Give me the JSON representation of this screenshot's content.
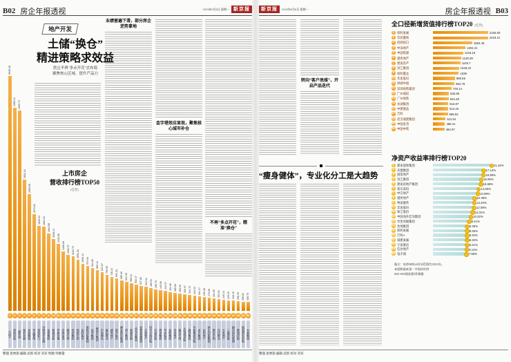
{
  "paper": {
    "left_header": {
      "page": "B02",
      "section": "房企年报透视",
      "date": "2023年5月8日 星期一",
      "masthead": "新京报"
    },
    "right_header": {
      "page": "B03",
      "section": "房企年报透视",
      "date": "2023年5月8日 星期一",
      "masthead": "新京报"
    },
    "left_footer": "整理 袁秀丽  编辑 武新  校对 刘军  制图 师春雷",
    "right_footer": "整理 袁秀丽  编辑 武新  校对 刘军"
  },
  "lead_article": {
    "kicker": "地产开发",
    "title_line1": "土储“换仓”",
    "title_line2": "精进策略求效益",
    "subtitle_line1": "房企不再“多点开花”式布局",
    "subtitle_line2": "聚焦核心区域、提升产品力",
    "subheads": [
      "业绩普遍下滑，部分房企逆势拿地",
      "金字塔效应显现，聚焦核心城市补仓",
      "不再“多点开花”，精准“换仓”",
      "转向“客户思维”，开启产品迭代"
    ]
  },
  "second_article": {
    "title": "“瘦身健体”，专业化分工是大趋势"
  },
  "notes": {
    "line1": "备注：各榜单统计时间范围为2022年。",
    "line2": "本图数据来源：中指研究院",
    "line3": "B02-B03版制图/师春雷"
  },
  "colors": {
    "bar_orange": "#e8900f",
    "bar_orange_light": "#f6b54b",
    "rank_circle_orange": "#ef9413",
    "rank_circle_yellow": "#efab13",
    "name_pill_blue": "#c7cddd",
    "roe_bar_blue": "#cde7ea",
    "masthead_red": "#a62421"
  },
  "chart_data": [
    {
      "type": "bar",
      "title": "上市房企营收排行榜TOP50",
      "title_line1": "上市房企",
      "title_line2": "营收排行榜TOP50",
      "unit": "(亿元)",
      "ylabel": "营收（亿元）",
      "legend_position": "none",
      "grid": false,
      "entries": [
        {
          "rank": 1,
          "name": "万科A",
          "value": 5038.38,
          "label": "5038.38"
        },
        {
          "rank": 2,
          "name": "绿地控股",
          "value": 4355.24,
          "label": "4355.24"
        },
        {
          "rank": 3,
          "name": "碧桂园",
          "value": 4303.71,
          "label": "4303.71"
        },
        {
          "rank": 4,
          "name": "保利发展",
          "value": 2811.1,
          "label": "2811.10"
        },
        {
          "rank": 5,
          "name": "龙湖集团",
          "value": 2505.65,
          "label": "2505.65"
        },
        {
          "rank": 6,
          "name": "华润置地",
          "value": 2070.61,
          "label": "2070.61"
        },
        {
          "rank": 7,
          "name": "招商蛇口",
          "value": 1830.04,
          "label": "1830.04"
        },
        {
          "rank": 8,
          "name": "中国海外发展",
          "value": 1803.22,
          "label": "1803.22"
        },
        {
          "rank": 9,
          "name": "金地集团",
          "value": 1664.88,
          "label": "1664.88"
        },
        {
          "rank": 10,
          "name": "新城控股",
          "value": 1538.24,
          "label": "1538.24"
        },
        {
          "rank": 11,
          "name": "华夏幸福",
          "value": 1432.86,
          "label": "1432.86"
        },
        {
          "rank": 12,
          "name": "中国金茂",
          "value": 1268.66,
          "label": "1268.66"
        },
        {
          "rank": 13,
          "name": "融创中国",
          "value": 1202.57,
          "label": "1202.57"
        },
        {
          "rank": 14,
          "name": "世茂集团",
          "value": 1163.76,
          "label": "1163.76"
        },
        {
          "rank": 15,
          "name": "绿城中国",
          "value": 1091.03,
          "label": "1091.03"
        },
        {
          "rank": 16,
          "name": "金科股份",
          "value": 1006.41,
          "label": "1006.41"
        },
        {
          "rank": 17,
          "name": "旭辉控股集团",
          "value": 970.63,
          "label": "970.63"
        },
        {
          "rank": 18,
          "name": "远洋集团",
          "value": 921.86,
          "label": "921.86"
        },
        {
          "rank": 19,
          "name": "雅居乐集团",
          "value": 869.42,
          "label": "869.42"
        },
        {
          "rank": 20,
          "name": "中南建设",
          "value": 823.87,
          "label": "823.87"
        },
        {
          "rank": 21,
          "name": "美的置业",
          "value": 769.95,
          "label": "769.95"
        },
        {
          "rank": 22,
          "name": "越秀地产",
          "value": 728.24,
          "label": "728.24"
        },
        {
          "rank": 23,
          "name": "首开股份",
          "value": 691.33,
          "label": "691.33"
        },
        {
          "rank": 24,
          "name": "建发国际集团",
          "value": 655.0,
          "label": "655.00"
        },
        {
          "rank": 25,
          "name": "滨江集团",
          "value": 622.3,
          "label": "622.30"
        },
        {
          "rank": 26,
          "name": "荣盛发展",
          "value": 590.13,
          "label": "590.13"
        },
        {
          "rank": 27,
          "name": "佳兆业集团",
          "value": 563.37,
          "label": "563.37"
        },
        {
          "rank": 28,
          "name": "合景泰富集团",
          "value": 537.8,
          "label": "537.80"
        },
        {
          "rank": 29,
          "name": "正荣地产",
          "value": 512.64,
          "label": "512.64"
        },
        {
          "rank": 30,
          "name": "时代中国控股",
          "value": 489.51,
          "label": "489.51"
        },
        {
          "rank": 31,
          "name": "中梁控股",
          "value": 466.76,
          "label": "466.76"
        },
        {
          "rank": 32,
          "name": "禹洲集团",
          "value": 445.06,
          "label": "445.06"
        },
        {
          "rank": 33,
          "name": "华发股份",
          "value": 424.37,
          "label": "424.37"
        },
        {
          "rank": 34,
          "name": "金辉集团",
          "value": 404.66,
          "label": "404.66"
        },
        {
          "rank": 35,
          "name": "宝龙地产",
          "value": 385.89,
          "label": "385.89"
        },
        {
          "rank": 36,
          "name": "融信中国",
          "value": 368.0,
          "label": "368.00"
        },
        {
          "rank": 37,
          "name": "大悦城控股",
          "value": 350.97,
          "label": "350.97"
        },
        {
          "rank": 38,
          "name": "路劲集团",
          "value": 334.75,
          "label": "334.75"
        },
        {
          "rank": 39,
          "name": "中骏集团控股",
          "value": 319.23,
          "label": "319.23"
        },
        {
          "rank": 40,
          "name": "龙光集团",
          "value": 304.47,
          "label": "304.47"
        },
        {
          "rank": 41,
          "name": "弘阳地产",
          "value": 290.36,
          "label": "290.36"
        },
        {
          "rank": 42,
          "name": "祥生控股集团",
          "value": 276.89,
          "label": "276.89"
        },
        {
          "rank": 43,
          "name": "德信中国",
          "value": 264.05,
          "label": "264.05"
        },
        {
          "rank": 44,
          "name": "当代置业",
          "value": 251.81,
          "label": "251.81"
        },
        {
          "rank": 45,
          "name": "大发地产",
          "value": 240.14,
          "label": "240.14"
        },
        {
          "rank": 46,
          "name": "三盛控股",
          "value": 229.03,
          "label": "229.03"
        },
        {
          "rank": 47,
          "name": "朗诗绿色管理",
          "value": 218.45,
          "label": "218.45"
        },
        {
          "rank": 48,
          "name": "景瑞控股",
          "value": 208.39,
          "label": "208.39"
        },
        {
          "rank": 49,
          "name": "银城国际控股",
          "value": 198.82,
          "label": "198.82"
        },
        {
          "rank": 50,
          "name": "力高集团",
          "value": 189.76,
          "label": "189.76"
        }
      ]
    },
    {
      "type": "bar",
      "title": "全口径新增货值排行榜TOP20",
      "unit": "(亿元)",
      "legend_position": "none",
      "grid": false,
      "entries": [
        {
          "rank": 1,
          "name": "保利发展",
          "value": 2226.93,
          "label": "2226.93"
        },
        {
          "rank": 2,
          "name": "华润置地",
          "value": 2219.21,
          "label": "2219.21"
        },
        {
          "rank": 3,
          "name": "招商蛇口",
          "value": 1584.45,
          "label": "1584.45"
        },
        {
          "rank": 4,
          "name": "中海地产",
          "value": 1304.31,
          "label": "1304.31"
        },
        {
          "rank": 5,
          "name": "中国铁建",
          "value": 1218.15,
          "label": "1218.15"
        },
        {
          "rank": 6,
          "name": "越秀地产",
          "value": 1128.39,
          "label": "1128.39"
        },
        {
          "rank": 7,
          "name": "建发房产",
          "value": 1105.7,
          "label": "1105.7"
        },
        {
          "rank": 8,
          "name": "滨江集团",
          "value": 1048.22,
          "label": "1048.22"
        },
        {
          "rank": 9,
          "name": "保利置业",
          "value": 1039,
          "label": "1039"
        },
        {
          "rank": 10,
          "name": "华发股份",
          "value": 885.65,
          "label": "885.65"
        },
        {
          "rank": 11,
          "name": "绿城中国",
          "value": 864.78,
          "label": "864.78"
        },
        {
          "rank": 12,
          "name": "深圳地铁集团",
          "value": 749.14,
          "label": "749.14"
        },
        {
          "rank": 13,
          "name": "广州城投",
          "value": 636.99,
          "label": "636.99"
        },
        {
          "rank": 14,
          "name": "广州地铁",
          "value": 634.48,
          "label": "634.48"
        },
        {
          "rank": 15,
          "name": "龙湖集团",
          "value": 616.87,
          "label": "616.87"
        },
        {
          "rank": 16,
          "name": "中建壹品",
          "value": 613.26,
          "label": "613.26"
        },
        {
          "rank": 17,
          "name": "万科",
          "value": 598.54,
          "label": "598.54"
        },
        {
          "rank": 18,
          "name": "武汉城建集团",
          "value": 511.54,
          "label": "511.54"
        },
        {
          "rank": 19,
          "name": "中国金茂",
          "value": 485.41,
          "label": "485.41"
        },
        {
          "rank": 20,
          "name": "中国中铁",
          "value": 462.97,
          "label": "462.97"
        }
      ]
    },
    {
      "type": "bar",
      "title": "净资产收益率排行榜TOP20",
      "unit": "(%)",
      "legend_position": "none",
      "grid": false,
      "entries": [
        {
          "rank": 1,
          "name": "建发国际集团",
          "value": 21.32,
          "label": "21.32%"
        },
        {
          "rank": 2,
          "name": "天健集团",
          "value": 17.14,
          "label": "17.14%"
        },
        {
          "rank": 3,
          "name": "国贸地产",
          "value": 16.99,
          "label": "16.99%"
        },
        {
          "rank": 4,
          "name": "滨江集团",
          "value": 15.86,
          "label": "15.86%"
        },
        {
          "rank": 5,
          "name": "建发房地产集团",
          "value": 15.68,
          "label": "15.68%"
        },
        {
          "rank": 6,
          "name": "南京高科",
          "value": 14.5,
          "label": "14.50%"
        },
        {
          "rank": 7,
          "name": "中交地产",
          "value": 13.99,
          "label": "13.99%"
        },
        {
          "rank": 8,
          "name": "越秀地产",
          "value": 12.38,
          "label": "12.38%"
        },
        {
          "rank": 9,
          "name": "特发服务",
          "value": 12.2,
          "label": "12.20%"
        },
        {
          "rank": 10,
          "name": "华发股份",
          "value": 12.09,
          "label": "12.09%"
        },
        {
          "rank": 11,
          "name": "珠江股份",
          "value": 11.31,
          "label": "11.31%"
        },
        {
          "rank": 12,
          "name": "中国海外宏洋集团",
          "value": 10.32,
          "label": "10.32%"
        },
        {
          "rank": 13,
          "name": "合生创展集团",
          "value": 9.41,
          "label": "9.41%"
        },
        {
          "rank": 14,
          "name": "金地集团",
          "value": 8.36,
          "label": "8.36%"
        },
        {
          "rank": 15,
          "name": "保利发展",
          "value": 8.35,
          "label": "8.35%"
        },
        {
          "rank": 16,
          "name": "万科A",
          "value": 8.34,
          "label": "8.34%"
        },
        {
          "rank": 17,
          "name": "城建发展",
          "value": 8.32,
          "label": "8.32%"
        },
        {
          "rank": 18,
          "name": "宁波富达",
          "value": 8.31,
          "label": "8.31%"
        },
        {
          "rank": 19,
          "name": "信达地产",
          "value": 8.14,
          "label": "8.14%"
        },
        {
          "rank": 20,
          "name": "电子城",
          "value": 7.98,
          "label": "7.98%"
        }
      ]
    }
  ]
}
